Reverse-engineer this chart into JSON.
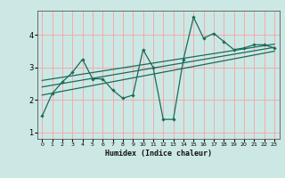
{
  "title": "",
  "xlabel": "Humidex (Indice chaleur)",
  "ylabel": "",
  "bg_color": "#cce8e5",
  "grid_color": "#f5aaaa",
  "line_color": "#1a6b5a",
  "xlim": [
    -0.5,
    23.5
  ],
  "ylim": [
    0.8,
    4.75
  ],
  "xticks": [
    0,
    1,
    2,
    3,
    4,
    5,
    6,
    7,
    8,
    9,
    10,
    11,
    12,
    13,
    14,
    15,
    16,
    17,
    18,
    19,
    20,
    21,
    22,
    23
  ],
  "yticks": [
    1,
    2,
    3,
    4
  ],
  "scatter_x": [
    0,
    1,
    2,
    3,
    4,
    5,
    6,
    7,
    8,
    9,
    10,
    11,
    12,
    13,
    14,
    15,
    16,
    17,
    18,
    19,
    20,
    21,
    22,
    23
  ],
  "scatter_y": [
    1.5,
    2.2,
    2.55,
    2.85,
    3.25,
    2.65,
    2.65,
    2.3,
    2.05,
    2.15,
    3.55,
    3.0,
    1.4,
    1.4,
    3.25,
    4.55,
    3.9,
    4.05,
    3.8,
    3.55,
    3.6,
    3.7,
    3.7,
    3.6
  ],
  "reg_lines": [
    {
      "x": [
        0,
        23
      ],
      "y": [
        2.15,
        3.5
      ]
    },
    {
      "x": [
        0,
        23
      ],
      "y": [
        2.4,
        3.62
      ]
    },
    {
      "x": [
        0,
        23
      ],
      "y": [
        2.6,
        3.72
      ]
    }
  ]
}
